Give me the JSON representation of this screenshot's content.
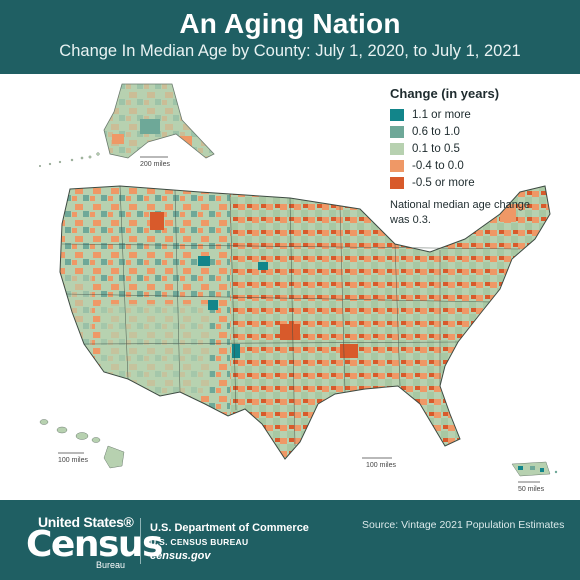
{
  "header": {
    "title": "An Aging Nation",
    "subtitle": "Change In Median Age by County: July 1, 2020, to July 1, 2021"
  },
  "legend": {
    "title": "Change (in years)",
    "items": [
      {
        "label": "1.1 or more",
        "color": "#12858a"
      },
      {
        "label": "0.6 to 1.0",
        "color": "#6ea898"
      },
      {
        "label": "0.1 to 0.5",
        "color": "#b7d1b0"
      },
      {
        "label": "-0.4 to 0.0",
        "color": "#ef9866"
      },
      {
        "label": "-0.5 or more",
        "color": "#d85a2b"
      }
    ],
    "note": "National median age change was 0.3."
  },
  "map": {
    "scales": {
      "alaska": "200 miles",
      "hawaii": "100 miles",
      "conus": "100 miles",
      "puerto_rico": "50 miles"
    }
  },
  "footer": {
    "logo_top": "United States®",
    "logo_main": "Census",
    "logo_sub": "Bureau",
    "department": "U.S. Department of Commerce",
    "bureau": "U.S. CENSUS BUREAU",
    "website": "census.gov",
    "source": "Source:  Vintage 2021 Population Estimates"
  }
}
